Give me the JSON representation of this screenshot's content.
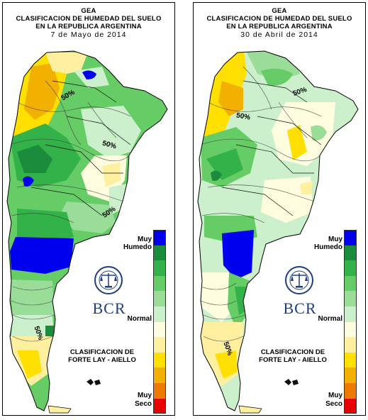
{
  "panels": [
    {
      "title_line1": "GEA",
      "title_line2": "CLASIFICACION DE HUMEDAD DEL SUELO",
      "title_line3": "EN LA REPUBLICA ARGENTINA",
      "date": "7 de Mayo de 2014",
      "contour_labels": [
        "50%",
        "50%",
        "50%",
        "50%"
      ]
    },
    {
      "title_line1": "GEA",
      "title_line2": "CLASIFICACION DE HUMEDAD DEL SUELO",
      "title_line3": "EN LA REPUBLICA ARGENTINA",
      "date": "30 de Abril de 2014",
      "contour_labels": [
        "50%",
        "50%",
        "50%"
      ]
    }
  ],
  "legend": {
    "top_label_1": "Muy",
    "top_label_2": "Humedo",
    "middle_label": "Normal",
    "bottom_label_1": "Muy",
    "bottom_label_2": "Seco",
    "classification_line1": "CLASIFICACION DE",
    "classification_line2": "FORTE LAY - AIELLO",
    "colors": [
      "#0000ee",
      "#1a8c3c",
      "#33b24a",
      "#66cc66",
      "#99dd99",
      "#ccf0cc",
      "#fffde0",
      "#fff0a0",
      "#ffe000",
      "#f2b000",
      "#ee7a00",
      "#e60000"
    ]
  },
  "logo": {
    "brand_text": "BCR",
    "seal_text": "BOLSA DE COMERCIO DE ROSARIO",
    "seal_icon": "scales-seal-icon"
  }
}
